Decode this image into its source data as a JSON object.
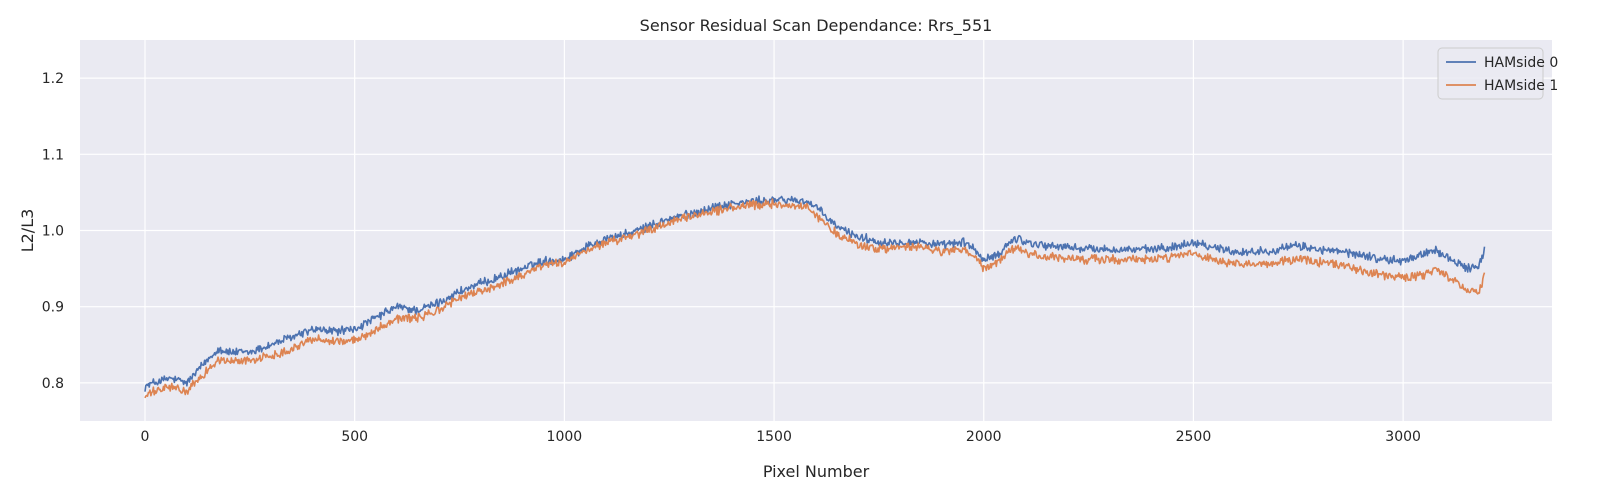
{
  "chart_data": {
    "type": "line",
    "title": "Sensor Residual Scan Dependance: Rrs_551",
    "xlabel": "Pixel Number",
    "ylabel": "L2/L3",
    "xlim": [
      -155,
      3355
    ],
    "ylim": [
      0.75,
      1.25
    ],
    "xticks": [
      0,
      500,
      1000,
      1500,
      2000,
      2500,
      3000
    ],
    "yticks": [
      0.8,
      0.9,
      1.0,
      1.1,
      1.2
    ],
    "xtick_labels": [
      "0",
      "500",
      "1000",
      "1500",
      "2000",
      "2500",
      "3000"
    ],
    "ytick_labels": [
      "0.8",
      "0.9",
      "1.0",
      "1.1",
      "1.2"
    ],
    "grid": true,
    "background": "#eaeaf2",
    "legend": {
      "position": "top-right",
      "entries": [
        "HAMside 0",
        "HAMside 1"
      ]
    },
    "series": [
      {
        "name": "HAMside 0",
        "color": "#4c72b0",
        "noise": 0.0045,
        "x": [
          0,
          20,
          60,
          100,
          140,
          175,
          200,
          250,
          300,
          350,
          400,
          450,
          500,
          550,
          600,
          650,
          700,
          750,
          800,
          850,
          900,
          950,
          1000,
          1050,
          1100,
          1150,
          1200,
          1250,
          1300,
          1350,
          1400,
          1450,
          1500,
          1550,
          1580,
          1600,
          1650,
          1700,
          1750,
          1800,
          1850,
          1900,
          1950,
          1980,
          2000,
          2040,
          2060,
          2080,
          2100,
          2150,
          2200,
          2250,
          2300,
          2350,
          2400,
          2450,
          2500,
          2550,
          2600,
          2650,
          2700,
          2750,
          2800,
          2850,
          2900,
          2950,
          3000,
          3050,
          3080,
          3100,
          3150,
          3180,
          3195
        ],
        "y": [
          0.795,
          0.8,
          0.806,
          0.8,
          0.825,
          0.845,
          0.84,
          0.84,
          0.85,
          0.86,
          0.87,
          0.868,
          0.87,
          0.885,
          0.9,
          0.895,
          0.905,
          0.92,
          0.93,
          0.94,
          0.95,
          0.96,
          0.962,
          0.978,
          0.99,
          0.995,
          1.005,
          1.015,
          1.022,
          1.03,
          1.035,
          1.038,
          1.04,
          1.04,
          1.038,
          1.03,
          1.005,
          0.992,
          0.985,
          0.985,
          0.985,
          0.98,
          0.985,
          0.975,
          0.96,
          0.97,
          0.985,
          0.99,
          0.985,
          0.98,
          0.978,
          0.976,
          0.975,
          0.975,
          0.975,
          0.978,
          0.985,
          0.978,
          0.972,
          0.972,
          0.975,
          0.98,
          0.975,
          0.972,
          0.968,
          0.962,
          0.96,
          0.97,
          0.975,
          0.965,
          0.952,
          0.95,
          0.978
        ]
      },
      {
        "name": "HAMside 1",
        "color": "#dd8452",
        "noise": 0.0045,
        "x": [
          0,
          20,
          60,
          100,
          140,
          175,
          200,
          250,
          300,
          350,
          400,
          450,
          500,
          550,
          600,
          650,
          700,
          750,
          800,
          850,
          900,
          950,
          1000,
          1050,
          1100,
          1150,
          1200,
          1250,
          1300,
          1350,
          1400,
          1450,
          1500,
          1550,
          1580,
          1600,
          1650,
          1700,
          1750,
          1800,
          1850,
          1900,
          1950,
          1980,
          2000,
          2040,
          2060,
          2080,
          2100,
          2150,
          2200,
          2250,
          2300,
          2350,
          2400,
          2450,
          2500,
          2550,
          2600,
          2650,
          2700,
          2750,
          2800,
          2850,
          2900,
          2950,
          3000,
          3050,
          3080,
          3100,
          3150,
          3180,
          3195
        ],
        "y": [
          0.782,
          0.788,
          0.795,
          0.788,
          0.812,
          0.83,
          0.828,
          0.83,
          0.835,
          0.845,
          0.858,
          0.855,
          0.855,
          0.87,
          0.885,
          0.885,
          0.895,
          0.912,
          0.92,
          0.93,
          0.942,
          0.955,
          0.958,
          0.972,
          0.985,
          0.99,
          1.0,
          1.01,
          1.018,
          1.025,
          1.03,
          1.033,
          1.035,
          1.033,
          1.03,
          1.02,
          0.995,
          0.982,
          0.975,
          0.978,
          0.978,
          0.972,
          0.975,
          0.965,
          0.95,
          0.96,
          0.972,
          0.978,
          0.97,
          0.965,
          0.963,
          0.962,
          0.962,
          0.962,
          0.962,
          0.965,
          0.97,
          0.96,
          0.955,
          0.955,
          0.958,
          0.963,
          0.958,
          0.955,
          0.948,
          0.942,
          0.938,
          0.942,
          0.948,
          0.94,
          0.925,
          0.918,
          0.945
        ]
      }
    ]
  }
}
